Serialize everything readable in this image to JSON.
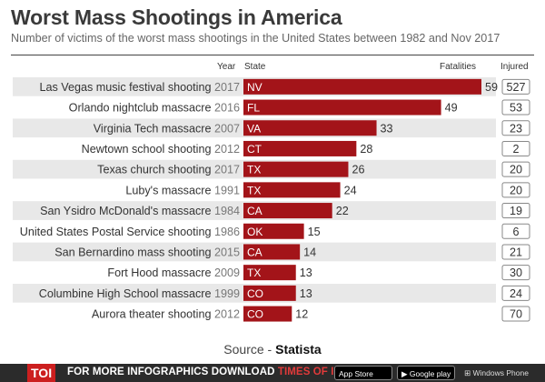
{
  "title": "Worst Mass Shootings in America",
  "subtitle": "Number of victims of the worst mass shootings in the United States between 1982 and Nov 2017",
  "headers": {
    "year": "Year",
    "state": "State",
    "fatalities": "Fatalities",
    "injured": "Injured"
  },
  "source": {
    "prefix": "Source - ",
    "name": "Statista"
  },
  "footer": {
    "logo": "TOI",
    "text_1": "FOR MORE  INFOGRAPHICS DOWNLOAD ",
    "text_2": "TIMES OF INDIA APP",
    "app_store": "App Store",
    "google_play": "Google play",
    "windows": "Windows Phone"
  },
  "colors": {
    "bar": "#a31419",
    "row_shade": "#e8e8e8",
    "footer_bg": "#2b2b2b",
    "toi_red": "#cc1f1f"
  },
  "chart_data": {
    "type": "bar",
    "orientation": "horizontal",
    "series": [
      {
        "name": "Fatalities",
        "values": [
          59,
          49,
          33,
          28,
          26,
          24,
          22,
          15,
          14,
          13,
          13,
          12
        ]
      },
      {
        "name": "Injured",
        "values": [
          527,
          53,
          23,
          2,
          20,
          20,
          19,
          6,
          21,
          30,
          24,
          70
        ]
      }
    ],
    "rows": [
      {
        "event": "Las Vegas music festival shooting",
        "year": "2017",
        "state": "NV",
        "fatalities": 59,
        "injured": 527
      },
      {
        "event": "Orlando nightclub massacre",
        "year": "2016",
        "state": "FL",
        "fatalities": 49,
        "injured": 53
      },
      {
        "event": "Virginia Tech massacre",
        "year": "2007",
        "state": "VA",
        "fatalities": 33,
        "injured": 23
      },
      {
        "event": "Newtown school shooting",
        "year": "2012",
        "state": "CT",
        "fatalities": 28,
        "injured": 2
      },
      {
        "event": "Texas church shooting",
        "year": "2017",
        "state": "TX",
        "fatalities": 26,
        "injured": 20
      },
      {
        "event": "Luby's massacre",
        "year": "1991",
        "state": "TX",
        "fatalities": 24,
        "injured": 20
      },
      {
        "event": "San Ysidro McDonald's massacre",
        "year": "1984",
        "state": "CA",
        "fatalities": 22,
        "injured": 19
      },
      {
        "event": "United States Postal Service shooting",
        "year": "1986",
        "state": "OK",
        "fatalities": 15,
        "injured": 6
      },
      {
        "event": "San Bernardino mass shooting",
        "year": "2015",
        "state": "CA",
        "fatalities": 14,
        "injured": 21
      },
      {
        "event": "Fort Hood massacre",
        "year": "2009",
        "state": "TX",
        "fatalities": 13,
        "injured": 30
      },
      {
        "event": "Columbine High School massacre",
        "year": "1999",
        "state": "CO",
        "fatalities": 13,
        "injured": 24
      },
      {
        "event": "Aurora theater shooting",
        "year": "2012",
        "state": "CO",
        "fatalities": 12,
        "injured": 70
      }
    ]
  }
}
